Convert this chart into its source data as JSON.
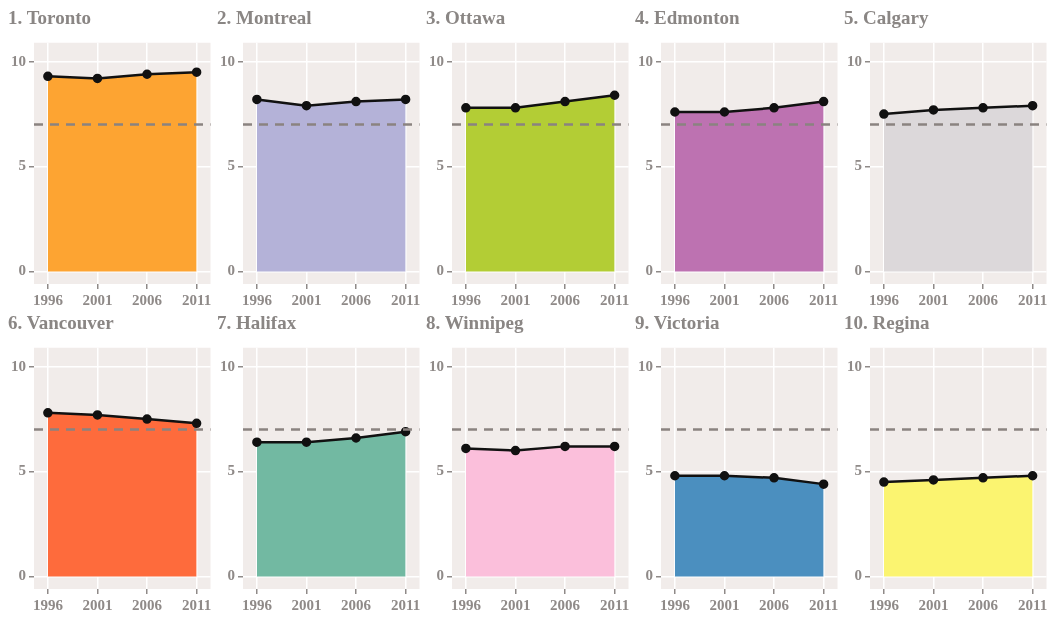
{
  "chart_data": [
    {
      "type": "area",
      "title": "1. Toronto",
      "x": [
        1996,
        2001,
        2006,
        2011
      ],
      "xlim": [
        1994.6,
        2012.4
      ],
      "xticks": [
        1996,
        2001,
        2006,
        2011
      ],
      "ylim": [
        -0.6,
        10.9
      ],
      "yticks": [
        0,
        5,
        10
      ],
      "grid": true,
      "marker": "circle",
      "series": [
        {
          "color": "#fda432",
          "values": [
            9.3,
            9.2,
            9.4,
            9.5
          ]
        }
      ],
      "ref_lines": [
        {
          "axis": "y",
          "value": 7,
          "color": "#8a8380",
          "line_style": "dashed"
        }
      ]
    },
    {
      "type": "area",
      "title": "2. Montreal",
      "x": [
        1996,
        2001,
        2006,
        2011
      ],
      "xlim": [
        1994.6,
        2012.4
      ],
      "xticks": [
        1996,
        2001,
        2006,
        2011
      ],
      "ylim": [
        -0.6,
        10.9
      ],
      "yticks": [
        0,
        5,
        10
      ],
      "grid": true,
      "marker": "circle",
      "series": [
        {
          "color": "#b4b2d8",
          "values": [
            8.2,
            7.9,
            8.1,
            8.2
          ]
        }
      ],
      "ref_lines": [
        {
          "axis": "y",
          "value": 7,
          "color": "#8a8380",
          "line_style": "dashed"
        }
      ]
    },
    {
      "type": "area",
      "title": "3. Ottawa",
      "x": [
        1996,
        2001,
        2006,
        2011
      ],
      "xlim": [
        1994.6,
        2012.4
      ],
      "xticks": [
        1996,
        2001,
        2006,
        2011
      ],
      "ylim": [
        -0.6,
        10.9
      ],
      "yticks": [
        0,
        5,
        10
      ],
      "grid": true,
      "marker": "circle",
      "series": [
        {
          "color": "#b3cd35",
          "values": [
            7.8,
            7.8,
            8.1,
            8.4
          ]
        }
      ],
      "ref_lines": [
        {
          "axis": "y",
          "value": 7,
          "color": "#8a8380",
          "line_style": "dashed"
        }
      ]
    },
    {
      "type": "area",
      "title": "4. Edmonton",
      "x": [
        1996,
        2001,
        2006,
        2011
      ],
      "xlim": [
        1994.6,
        2012.4
      ],
      "xticks": [
        1996,
        2001,
        2006,
        2011
      ],
      "ylim": [
        -0.6,
        10.9
      ],
      "yticks": [
        0,
        5,
        10
      ],
      "grid": true,
      "marker": "circle",
      "series": [
        {
          "color": "#bd72b1",
          "values": [
            7.6,
            7.6,
            7.8,
            8.1
          ]
        }
      ],
      "ref_lines": [
        {
          "axis": "y",
          "value": 7,
          "color": "#8a8380",
          "line_style": "dashed"
        }
      ]
    },
    {
      "type": "area",
      "title": "5. Calgary",
      "x": [
        1996,
        2001,
        2006,
        2011
      ],
      "xlim": [
        1994.6,
        2012.4
      ],
      "xticks": [
        1996,
        2001,
        2006,
        2011
      ],
      "ylim": [
        -0.6,
        10.9
      ],
      "yticks": [
        0,
        5,
        10
      ],
      "grid": true,
      "marker": "circle",
      "series": [
        {
          "color": "#dcd8da",
          "values": [
            7.5,
            7.7,
            7.8,
            7.9
          ]
        }
      ],
      "ref_lines": [
        {
          "axis": "y",
          "value": 7,
          "color": "#8a8380",
          "line_style": "dashed"
        }
      ]
    },
    {
      "type": "area",
      "title": "6. Vancouver",
      "x": [
        1996,
        2001,
        2006,
        2011
      ],
      "xlim": [
        1994.6,
        2012.4
      ],
      "xticks": [
        1996,
        2001,
        2006,
        2011
      ],
      "ylim": [
        -0.6,
        10.9
      ],
      "yticks": [
        0,
        5,
        10
      ],
      "grid": true,
      "marker": "circle",
      "series": [
        {
          "color": "#fe6b3c",
          "values": [
            7.8,
            7.7,
            7.5,
            7.3
          ]
        }
      ],
      "ref_lines": [
        {
          "axis": "y",
          "value": 7,
          "color": "#8a8380",
          "line_style": "dashed"
        }
      ]
    },
    {
      "type": "area",
      "title": "7. Halifax",
      "x": [
        1996,
        2001,
        2006,
        2011
      ],
      "xlim": [
        1994.6,
        2012.4
      ],
      "xticks": [
        1996,
        2001,
        2006,
        2011
      ],
      "ylim": [
        -0.6,
        10.9
      ],
      "yticks": [
        0,
        5,
        10
      ],
      "grid": true,
      "marker": "circle",
      "series": [
        {
          "color": "#72b9a2",
          "values": [
            6.4,
            6.4,
            6.6,
            6.9
          ]
        }
      ],
      "ref_lines": [
        {
          "axis": "y",
          "value": 7,
          "color": "#8a8380",
          "line_style": "dashed"
        }
      ]
    },
    {
      "type": "area",
      "title": "8. Winnipeg",
      "x": [
        1996,
        2001,
        2006,
        2011
      ],
      "xlim": [
        1994.6,
        2012.4
      ],
      "xticks": [
        1996,
        2001,
        2006,
        2011
      ],
      "ylim": [
        -0.6,
        10.9
      ],
      "yticks": [
        0,
        5,
        10
      ],
      "grid": true,
      "marker": "circle",
      "series": [
        {
          "color": "#fbbfdb",
          "values": [
            6.1,
            6.0,
            6.2,
            6.2
          ]
        }
      ],
      "ref_lines": [
        {
          "axis": "y",
          "value": 7,
          "color": "#8a8380",
          "line_style": "dashed"
        }
      ]
    },
    {
      "type": "area",
      "title": "9. Victoria",
      "x": [
        1996,
        2001,
        2006,
        2011
      ],
      "xlim": [
        1994.6,
        2012.4
      ],
      "xticks": [
        1996,
        2001,
        2006,
        2011
      ],
      "ylim": [
        -0.6,
        10.9
      ],
      "yticks": [
        0,
        5,
        10
      ],
      "grid": true,
      "marker": "circle",
      "series": [
        {
          "color": "#4b8fbf",
          "values": [
            4.8,
            4.8,
            4.7,
            4.4
          ]
        }
      ],
      "ref_lines": [
        {
          "axis": "y",
          "value": 7,
          "color": "#8a8380",
          "line_style": "dashed"
        }
      ]
    },
    {
      "type": "area",
      "title": "10. Regina",
      "x": [
        1996,
        2001,
        2006,
        2011
      ],
      "xlim": [
        1994.6,
        2012.4
      ],
      "xticks": [
        1996,
        2001,
        2006,
        2011
      ],
      "ylim": [
        -0.6,
        10.9
      ],
      "yticks": [
        0,
        5,
        10
      ],
      "grid": true,
      "marker": "circle",
      "series": [
        {
          "color": "#fbf470",
          "values": [
            4.5,
            4.6,
            4.7,
            4.8
          ]
        }
      ],
      "ref_lines": [
        {
          "axis": "y",
          "value": 7,
          "color": "#8a8380",
          "line_style": "dashed"
        }
      ]
    }
  ]
}
